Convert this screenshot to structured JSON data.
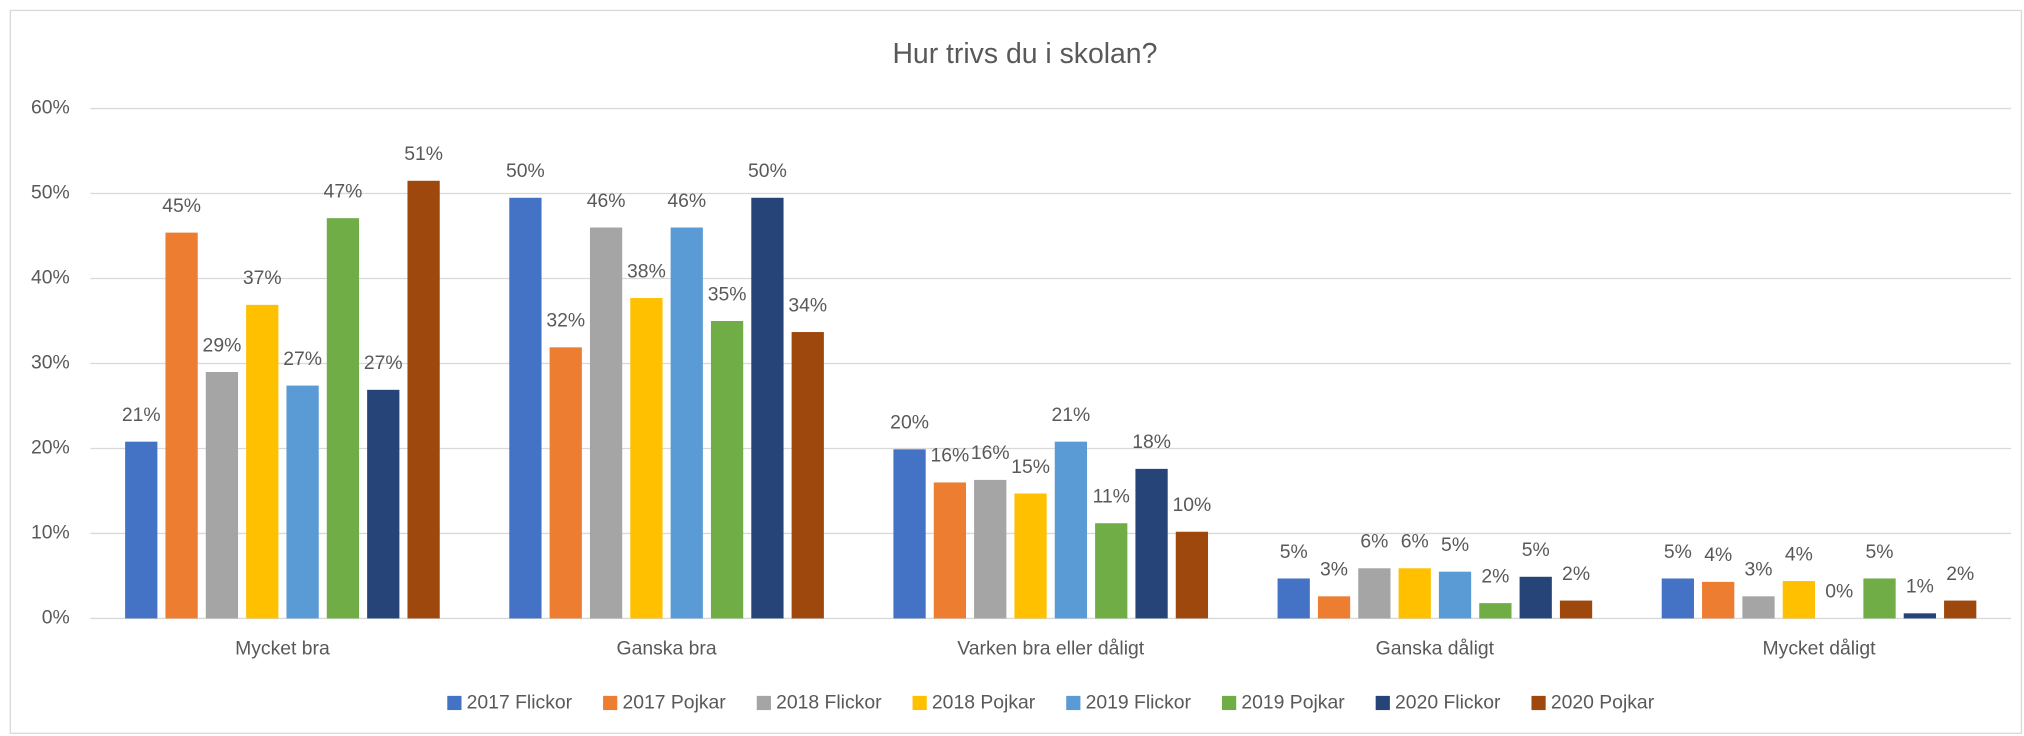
{
  "chart_data": {
    "type": "bar",
    "title": "Hur trivs du i skolan?",
    "categories": [
      "Mycket bra",
      "Ganska bra",
      "Varken bra eller dåligt",
      "Ganska dåligt",
      "Mycket dåligt"
    ],
    "series": [
      {
        "name": "2017 Flickor",
        "color": "#4472c4",
        "values": [
          20.8,
          49.5,
          19.9,
          4.7,
          4.7
        ],
        "value_labels": [
          "21%",
          "50%",
          "20%",
          "5%",
          "5%"
        ]
      },
      {
        "name": "2017 Pojkar",
        "color": "#ed7d31",
        "values": [
          45.4,
          31.9,
          16.0,
          2.6,
          4.3
        ],
        "value_labels": [
          "45%",
          "32%",
          "16%",
          "3%",
          "4%"
        ]
      },
      {
        "name": "2018 Flickor",
        "color": "#a5a5a5",
        "values": [
          29.0,
          46.0,
          16.3,
          5.9,
          2.6
        ],
        "value_labels": [
          "29%",
          "46%",
          "16%",
          "6%",
          "3%"
        ]
      },
      {
        "name": "2018 Pojkar",
        "color": "#ffc000",
        "values": [
          36.9,
          37.7,
          14.7,
          5.9,
          4.4
        ],
        "value_labels": [
          "37%",
          "38%",
          "15%",
          "6%",
          "4%"
        ]
      },
      {
        "name": "2019 Flickor",
        "color": "#5b9bd5",
        "values": [
          27.4,
          46.0,
          20.8,
          5.5,
          0
        ],
        "value_labels": [
          "27%",
          "46%",
          "21%",
          "5%",
          "0%"
        ]
      },
      {
        "name": "2019 Pojkar",
        "color": "#70ad47",
        "values": [
          47.1,
          35.0,
          11.2,
          1.8,
          4.7
        ],
        "value_labels": [
          "47%",
          "35%",
          "11%",
          "2%",
          "5%"
        ]
      },
      {
        "name": "2020 Flickor",
        "color": "#264478",
        "values": [
          26.9,
          49.5,
          17.6,
          4.9,
          0.6
        ],
        "value_labels": [
          "27%",
          "50%",
          "18%",
          "5%",
          "1%"
        ]
      },
      {
        "name": "2020 Pojkar",
        "color": "#9e480e",
        "values": [
          51.5,
          33.7,
          10.2,
          2.1,
          2.1
        ],
        "value_labels": [
          "51%",
          "34%",
          "10%",
          "2%",
          "2%"
        ]
      }
    ],
    "ylim": [
      0,
      60
    ],
    "yticks": [
      {
        "value": 0,
        "label": "0%"
      },
      {
        "value": 10,
        "label": "10%"
      },
      {
        "value": 20,
        "label": "20%"
      },
      {
        "value": 30,
        "label": "30%"
      },
      {
        "value": 40,
        "label": "40%"
      },
      {
        "value": 50,
        "label": "50%"
      },
      {
        "value": 60,
        "label": "60%"
      }
    ],
    "grid": true,
    "legend": "bottom"
  }
}
